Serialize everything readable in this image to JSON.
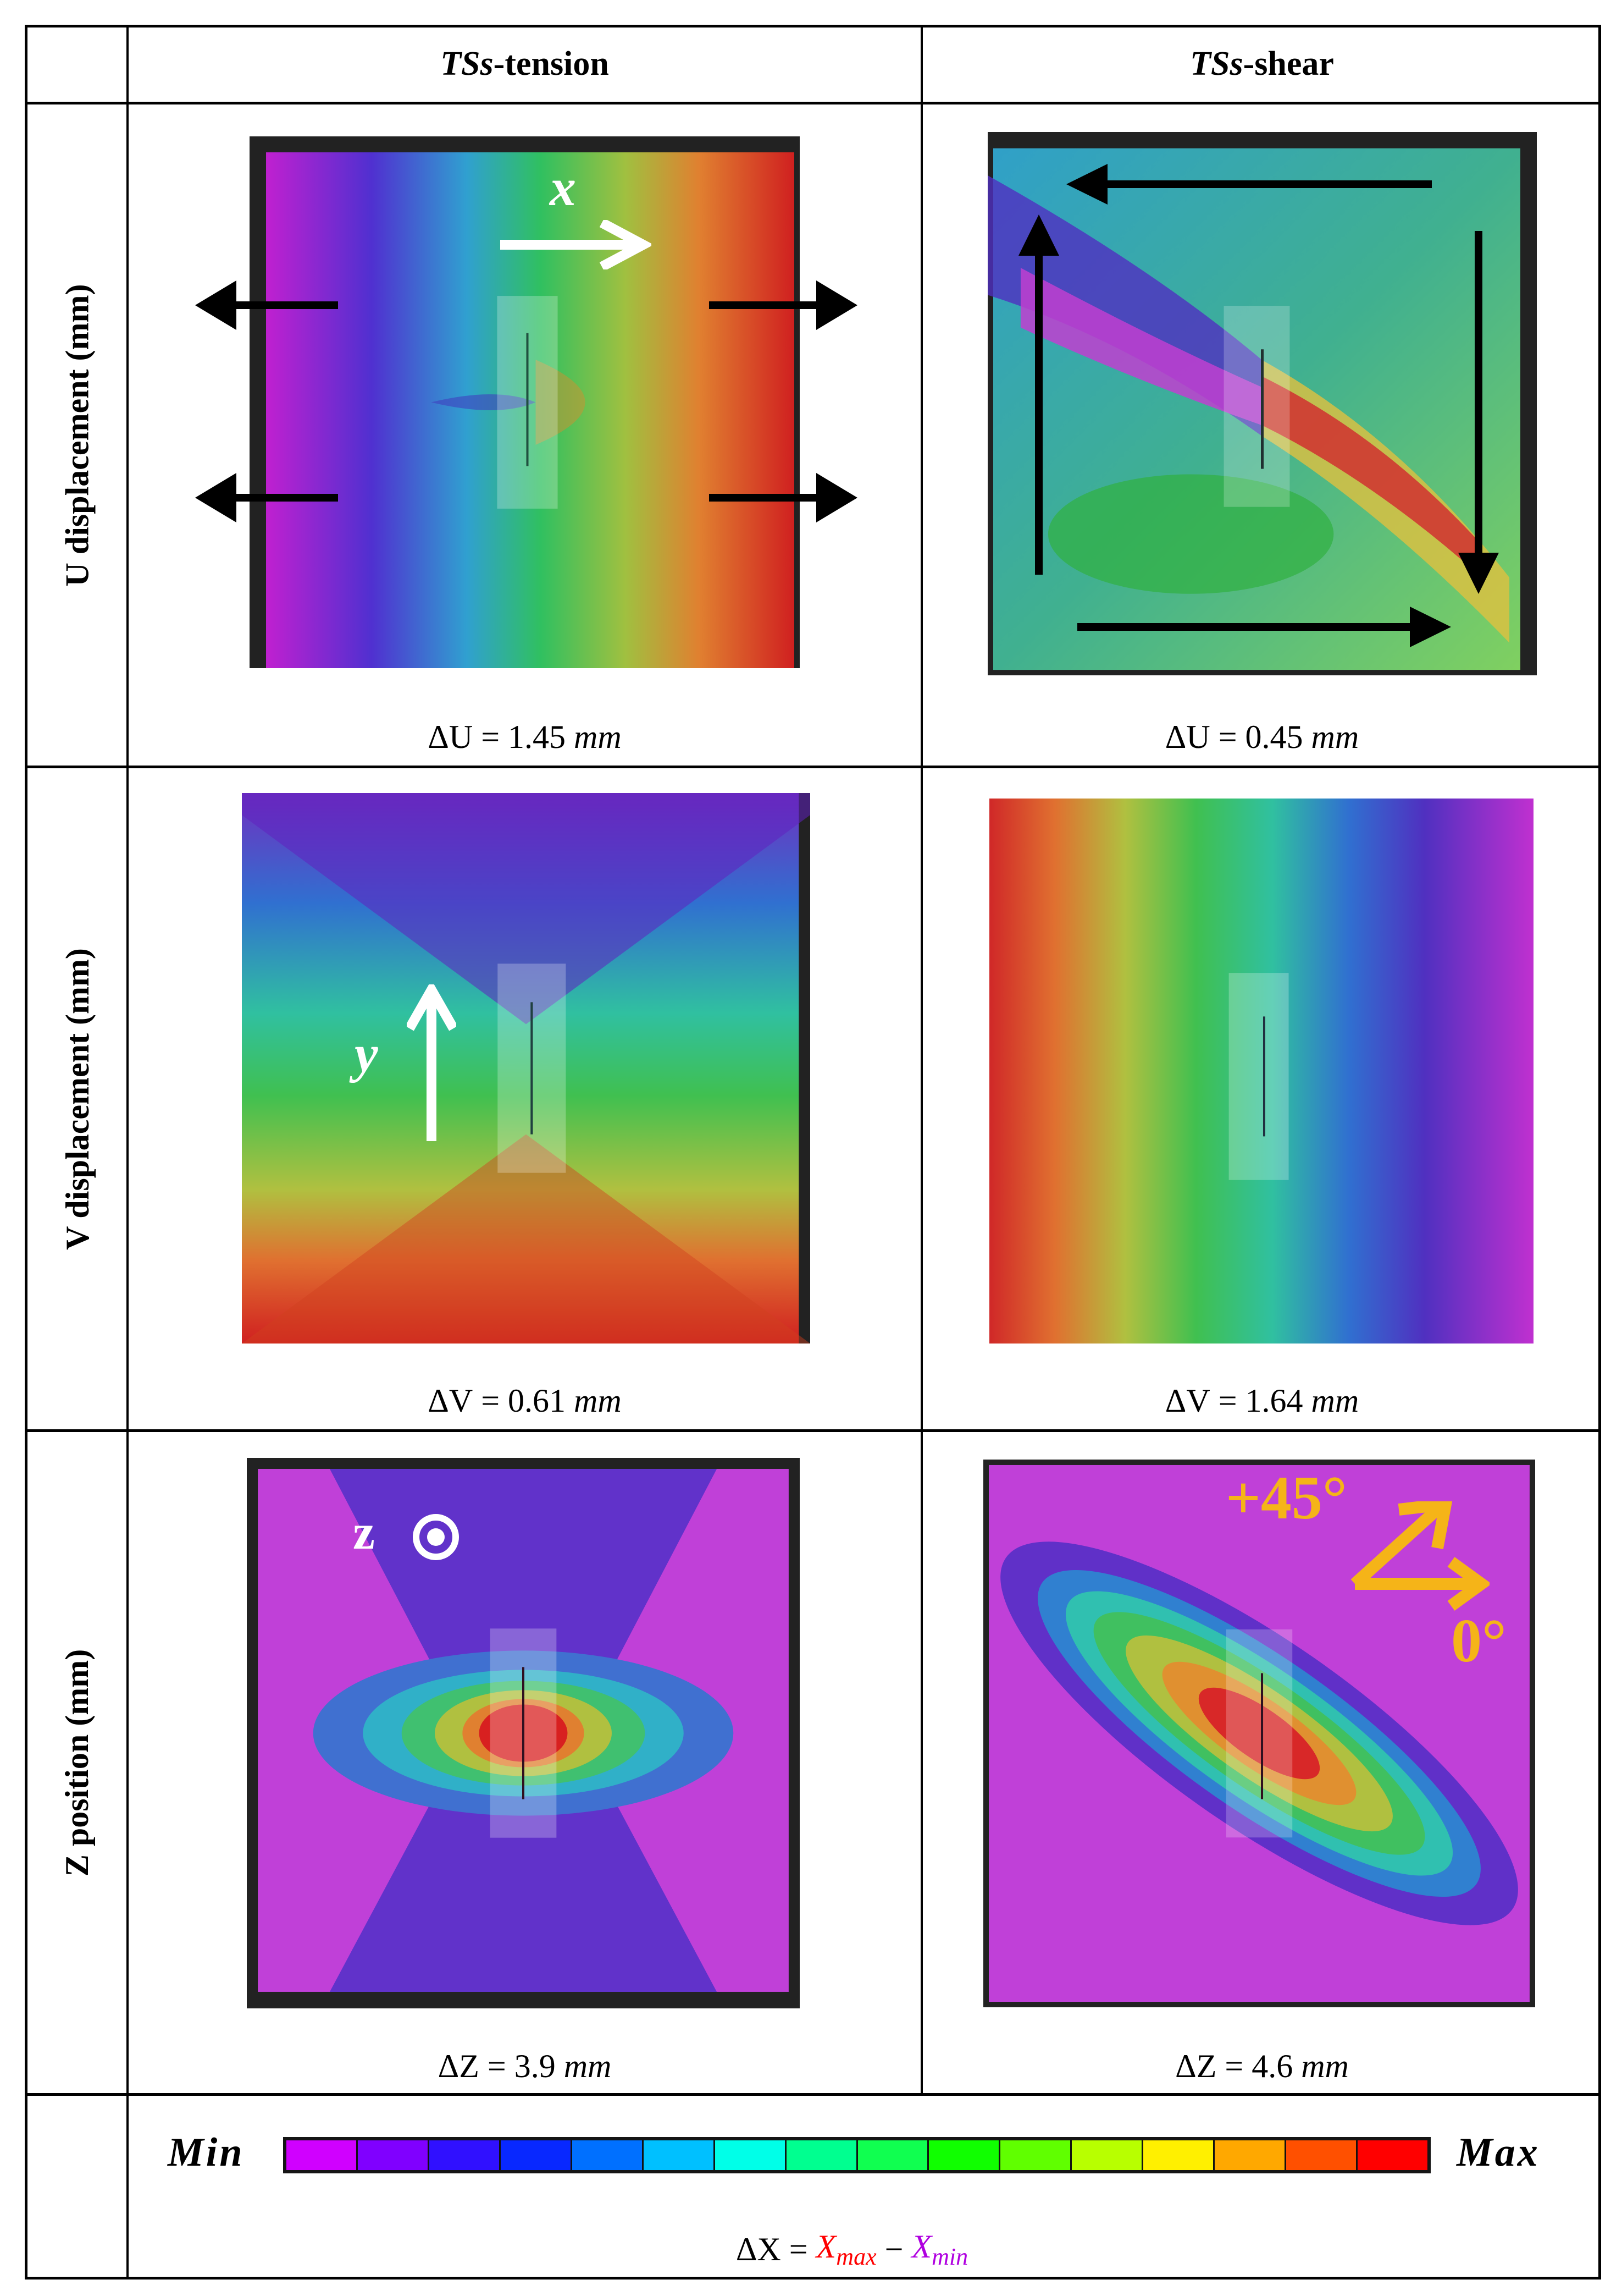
{
  "table": {
    "column_headers": [
      {
        "italic": "TSs",
        "rest": "-tension"
      },
      {
        "italic": "TSs",
        "rest": "-shear"
      }
    ],
    "rows": [
      {
        "label": "U displacement (mm)",
        "cells": [
          {
            "caption_sym": "ΔU",
            "caption_eq": " = 1.45 ",
            "caption_unit": "mm",
            "annotation": "x"
          },
          {
            "caption_sym": "ΔU",
            "caption_eq": " = 0.45 ",
            "caption_unit": "mm"
          }
        ]
      },
      {
        "label": "V displacement (mm)",
        "cells": [
          {
            "caption_sym": "ΔV",
            "caption_eq": " = 0.61 ",
            "caption_unit": "mm",
            "annotation": "y"
          },
          {
            "caption_sym": "ΔV",
            "caption_eq": " = 1.64 ",
            "caption_unit": "mm"
          }
        ]
      },
      {
        "label": "Z position (mm)",
        "cells": [
          {
            "caption_sym": "ΔZ",
            "caption_eq": " = 3.9 ",
            "caption_unit": "mm",
            "annotation": "z"
          },
          {
            "caption_sym": "ΔZ",
            "caption_eq": " = 4.6 ",
            "caption_unit": "mm",
            "annotation_angle_1": "+45°",
            "annotation_angle_2": "0°"
          }
        ]
      }
    ],
    "legend": {
      "min_label": "Min",
      "max_label": "Max",
      "colors": [
        "#d000ff",
        "#8000ff",
        "#3010ff",
        "#0828ff",
        "#0070ff",
        "#00c0ff",
        "#00ffe8",
        "#00ff90",
        "#10ff50",
        "#10ff00",
        "#60ff00",
        "#b8ff00",
        "#fff000",
        "#ffa800",
        "#ff5000",
        "#ff0000"
      ],
      "formula_lhs": "ΔX = ",
      "formula_xmax": "X",
      "formula_xmax_sub": "max",
      "formula_minus": " − ",
      "formula_xmin": "X",
      "formula_xmin_sub": "min"
    }
  },
  "colors": {
    "annotation_orange": "#f5b418",
    "xmax_red": "#ff0000",
    "xmin_purple": "#b000e0"
  }
}
